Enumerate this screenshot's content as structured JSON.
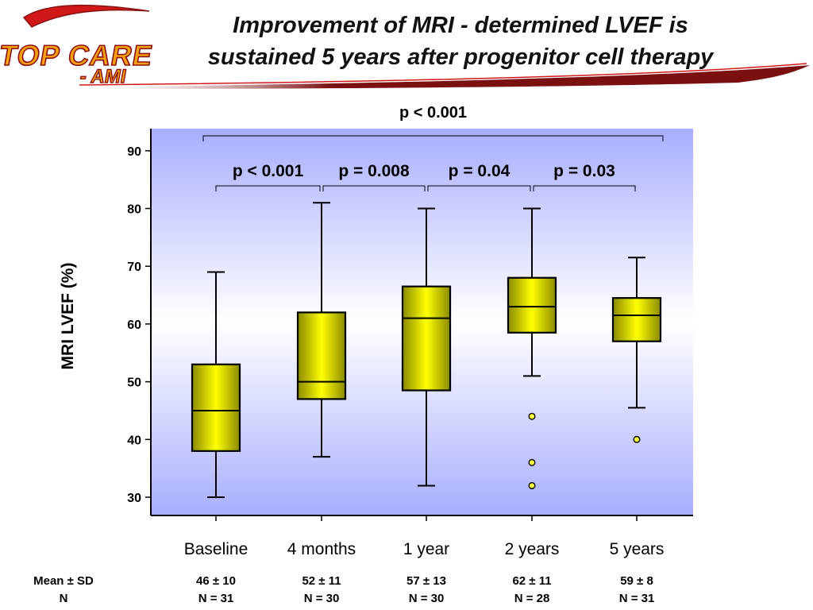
{
  "logo": {
    "line1": "TOP CARE",
    "line2": "- AMI",
    "colors": {
      "fill": "#f5a010",
      "outline": "#8a1010",
      "accent": "#d01818"
    }
  },
  "slide": {
    "title_line1": "Improvement of MRI - determined LVEF is",
    "title_line2": "sustained 5 years after progenitor cell therapy"
  },
  "chart_data": {
    "type": "box",
    "title": "",
    "xlabel": "",
    "ylabel": "MRI LVEF (%)",
    "ylim": [
      26,
      94
    ],
    "yticks": [
      30,
      40,
      50,
      60,
      70,
      80,
      90
    ],
    "grid": false,
    "legend": "none",
    "categories": [
      "Baseline",
      "4 months",
      "1 year",
      "2 years",
      "5 years"
    ],
    "boxes": [
      {
        "whisker_low": 30,
        "q1": 38,
        "median": 45,
        "q3": 53,
        "whisker_high": 69,
        "outliers": []
      },
      {
        "whisker_low": 37,
        "q1": 47,
        "median": 50,
        "q3": 62,
        "whisker_high": 81,
        "outliers": []
      },
      {
        "whisker_low": 32,
        "q1": 48.5,
        "median": 61,
        "q3": 66.5,
        "whisker_high": 80,
        "outliers": []
      },
      {
        "whisker_low": 51,
        "q1": 58.5,
        "median": 63,
        "q3": 68,
        "whisker_high": 80,
        "outliers": [
          44,
          36,
          32
        ]
      },
      {
        "whisker_low": 45.5,
        "q1": 57,
        "median": 61.5,
        "q3": 64.5,
        "whisker_high": 71.5,
        "outliers": [
          40
        ]
      }
    ],
    "comparisons": [
      {
        "label": "p < 0.001",
        "from": 0,
        "to": 1,
        "level": "inner"
      },
      {
        "label": "p = 0.008",
        "from": 1,
        "to": 2,
        "level": "inner"
      },
      {
        "label": "p = 0.04",
        "from": 2,
        "to": 3,
        "level": "inner"
      },
      {
        "label": "p = 0.03",
        "from": 3,
        "to": 4,
        "level": "inner"
      },
      {
        "label": "p < 0.001",
        "from": 0,
        "to": 4,
        "level": "outer"
      }
    ],
    "colors": {
      "box_fill": "#ffff00",
      "box_shade": "#8a8a00",
      "outlier_fill": "#ffff40",
      "plot_bg_top": "#a8aeff",
      "plot_bg_mid": "#ffffff",
      "plot_bg_bottom": "#a8aeff"
    }
  },
  "stats_table": {
    "mean_label": "Mean ± SD",
    "n_label": "N",
    "means": [
      "46 ± 10",
      "52 ± 11",
      "57 ± 13",
      "62 ± 11",
      "59 ± 8"
    ],
    "ns": [
      "N = 31",
      "N = 30",
      "N = 30",
      "N = 28",
      "N = 31"
    ]
  }
}
